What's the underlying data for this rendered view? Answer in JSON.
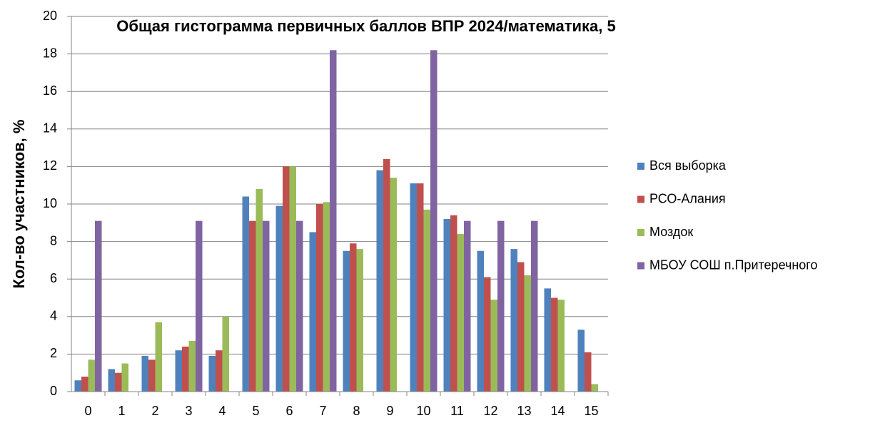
{
  "chart_data": {
    "type": "bar",
    "title": "Общая гистограмма первичных баллов ВПР 2024/математика, 5",
    "y_label": "Кол-во участников, %",
    "categories": [
      "0",
      "1",
      "2",
      "3",
      "4",
      "5",
      "6",
      "7",
      "8",
      "9",
      "10",
      "11",
      "12",
      "13",
      "14",
      "15"
    ],
    "series": [
      {
        "name": "Вся выборка",
        "color": "#4f81bd",
        "values": [
          0.6,
          1.2,
          1.9,
          2.2,
          1.9,
          10.4,
          9.9,
          8.5,
          7.5,
          11.8,
          11.1,
          9.2,
          7.5,
          7.6,
          5.5,
          3.3
        ]
      },
      {
        "name": "РСО-Алания",
        "color": "#c0504d",
        "values": [
          0.8,
          1.0,
          1.7,
          2.4,
          2.2,
          9.1,
          12.0,
          10.0,
          7.9,
          12.4,
          11.1,
          9.4,
          6.1,
          6.9,
          5.0,
          2.1
        ]
      },
      {
        "name": "Моздок",
        "color": "#9bbb59",
        "values": [
          1.7,
          1.5,
          3.7,
          2.7,
          4.0,
          10.8,
          12.0,
          10.1,
          7.6,
          11.4,
          9.7,
          8.4,
          4.9,
          6.2,
          4.9,
          0.4
        ]
      },
      {
        "name": "МБОУ СОШ п.Притеречного",
        "color": "#8064a2",
        "values": [
          9.1,
          0,
          0,
          9.1,
          0,
          9.1,
          9.1,
          18.2,
          0,
          0,
          18.2,
          9.1,
          9.1,
          9.1,
          0,
          0
        ]
      }
    ],
    "ylim": [
      0,
      20
    ],
    "yticks": [
      0,
      2,
      4,
      6,
      8,
      10,
      12,
      14,
      16,
      18,
      20
    ],
    "grid": true,
    "legend": "right"
  }
}
